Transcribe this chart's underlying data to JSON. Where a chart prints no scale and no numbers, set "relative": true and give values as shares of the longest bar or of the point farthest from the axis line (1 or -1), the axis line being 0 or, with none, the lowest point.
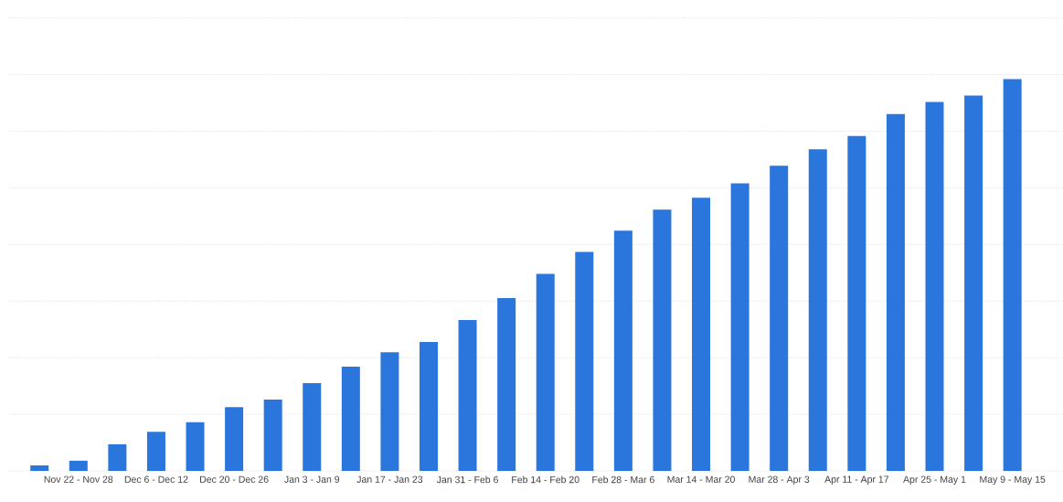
{
  "chart_data": {
    "type": "bar",
    "relative": true,
    "grid": "y",
    "color": "#2a76dd",
    "categories": [
      null,
      "Nov 22 - Nov 28",
      null,
      "Dec 6 - Dec 12",
      null,
      "Dec 20 - Dec 26",
      null,
      "Jan 3 - Jan 9",
      null,
      "Jan 17 - Jan 23",
      null,
      "Jan 31 - Feb 6",
      null,
      "Feb 14 - Feb 20",
      null,
      "Feb 28 - Mar 6",
      null,
      "Mar 14 - Mar 20",
      null,
      "Mar 28 - Apr 3",
      null,
      "Apr 11 - Apr 17",
      null,
      "Apr 25 - May 1",
      null,
      "May 9 - May 15"
    ],
    "values": [
      0.014,
      0.026,
      0.068,
      0.1,
      0.124,
      0.163,
      0.182,
      0.224,
      0.266,
      0.303,
      0.329,
      0.385,
      0.441,
      0.503,
      0.559,
      0.613,
      0.667,
      0.697,
      0.734,
      0.779,
      0.821,
      0.855,
      0.911,
      0.942,
      0.958,
      1.0
    ]
  }
}
